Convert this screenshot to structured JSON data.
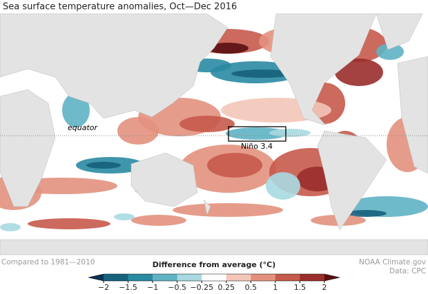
{
  "title": "Sea surface temperature anomalies, Oct—Dec 2016",
  "map_labels": {
    "equator": "equator",
    "nino_box": "Niño 3.4"
  },
  "footer": {
    "baseline": "Compared to 1981—2010",
    "source": "NOAA Climate.gov",
    "data": "Data: CPC"
  },
  "colorbar": {
    "title": "Difference from average (°C)",
    "ticks": [
      {
        "value": -2,
        "label": "−2"
      },
      {
        "value": -1.5,
        "label": "−1.5"
      },
      {
        "value": -1,
        "label": "−1"
      },
      {
        "value": -0.5,
        "label": "−0.5"
      },
      {
        "value": -0.25,
        "label": "−0.25"
      },
      0.25,
      0.5,
      1,
      1.5,
      2
    ],
    "colors": [
      "#0b3150",
      "#16617c",
      "#2a8aa2",
      "#5fb3c4",
      "#a9d9e1",
      "#ffffff",
      "#f3c6b8",
      "#e3917e",
      "#c65a4b",
      "#9a2e2c",
      "#5a0f12"
    ]
  }
}
